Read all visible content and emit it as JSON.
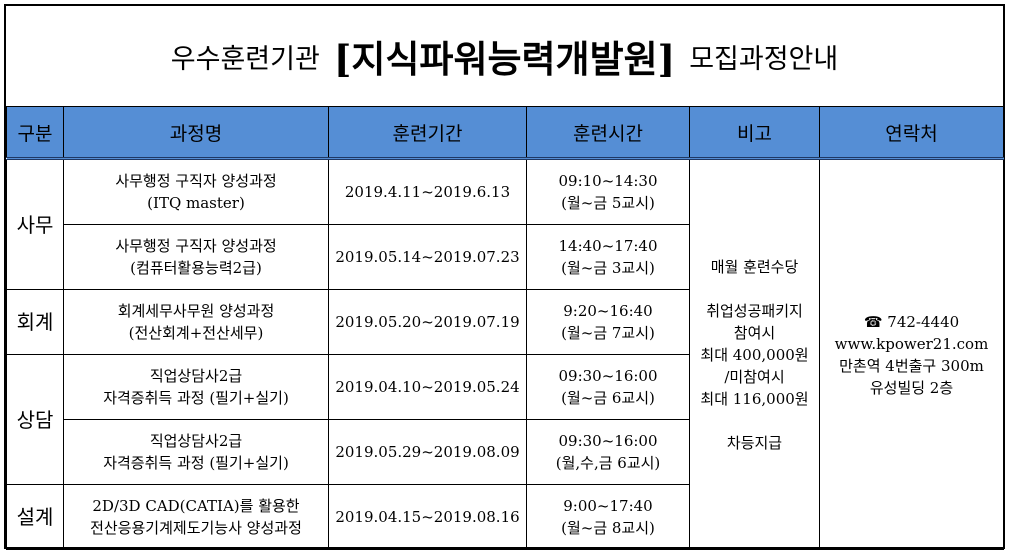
{
  "title": {
    "prefix": "우수훈련기관",
    "name": "[지식파워능력개발원]",
    "suffix": "모집과정안내"
  },
  "header_color": "#558ED5",
  "columns": [
    "구분",
    "과정명",
    "훈련기간",
    "훈련시간",
    "비고",
    "연락처"
  ],
  "rows": [
    {
      "category": "사무",
      "course": [
        "사무행정 구직자 양성과정",
        "(ITQ master)"
      ],
      "period": "2019.4.11~2019.6.13",
      "time": [
        "09:10~14:30",
        "(월~금 5교시)"
      ]
    },
    {
      "category": "",
      "course": [
        "사무행정 구직자 양성과정",
        "(컴퓨터활용능력2급)"
      ],
      "period": "2019.05.14~2019.07.23",
      "time": [
        "14:40~17:40",
        "(월~금 3교시)"
      ]
    },
    {
      "category": "회계",
      "course": [
        "회계세무사무원 양성과정",
        "(전산회계+전산세무)"
      ],
      "period": "2019.05.20~2019.07.19",
      "time": [
        "9:20~16:40",
        "(월~금 7교시)"
      ]
    },
    {
      "category": "상담",
      "course": [
        "직업상담사2급",
        "자격증취득 과정 (필기+실기)"
      ],
      "period": "2019.04.10~2019.05.24",
      "time": [
        "09:30~16:00",
        "(월~금 6교시)"
      ]
    },
    {
      "category": "",
      "course": [
        "직업상담사2급",
        "자격증취득 과정 (필기+실기)"
      ],
      "period": "2019.05.29~2019.08.09",
      "time": [
        "09:30~16:00",
        "(월,수,금 6교시)"
      ]
    },
    {
      "category": "설계",
      "course": [
        "2D/3D CAD(CATIA)를 활용한",
        "전산응용기계제도기능사 양성과정"
      ],
      "period": "2019.04.15~2019.08.16",
      "time": [
        "9:00~17:40",
        "(월~금 8교시)"
      ]
    }
  ],
  "note": {
    "l1": "매월 훈련수당",
    "l2": "취업성공패키지",
    "l3": "참여시",
    "l4": "최대 400,000원",
    "l5": "/미참여시",
    "l6": "최대 116,000원",
    "l7": "차등지급"
  },
  "contact": {
    "phone_icon": "telephone-icon",
    "phone": "☎ 742-4440",
    "web": "www.kpower21.com",
    "location": "만촌역 4번출구 300m",
    "building": "유성빌딩 2층"
  }
}
